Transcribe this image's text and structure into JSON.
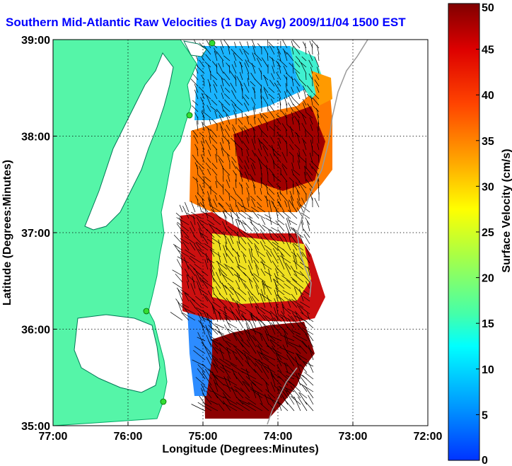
{
  "title": "Southern Mid-Atlantic Raw Velocities (1 Day Avg) 2009/11/04 1500 EST",
  "title_color": "#0000ff",
  "map": {
    "xlabel": "Longitude (Degrees:Minutes)",
    "ylabel": "Latitude (Degrees:Minutes)",
    "lon_range": [
      -77,
      -72
    ],
    "lat_range": [
      35,
      39
    ],
    "x_ticks": [
      "77:00",
      "76:00",
      "75:00",
      "74:00",
      "73:00",
      "72:00"
    ],
    "y_ticks": [
      "39:00",
      "38:00",
      "37:00",
      "36:00",
      "35:00"
    ],
    "grid": "dotted",
    "land_color": "#55f5a8",
    "station_color": "#33dd33"
  },
  "colorbar": {
    "label": "Surface Velocity (cm/s)",
    "range": [
      0,
      50
    ],
    "ticks": [
      "0",
      "5",
      "10",
      "15",
      "20",
      "25",
      "30",
      "35",
      "40",
      "45",
      "50"
    ],
    "colormap": "jet"
  }
}
